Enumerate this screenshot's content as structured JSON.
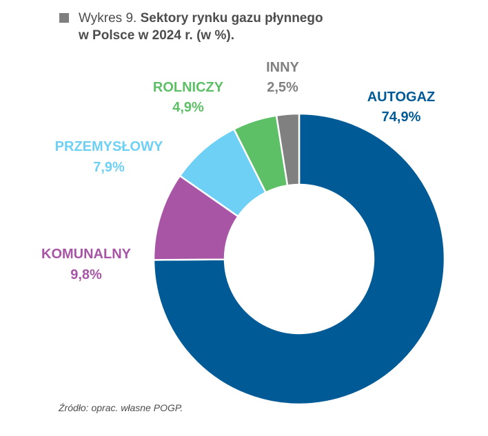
{
  "title": {
    "prefix": "Wykres 9.",
    "bold_line1": "Sektory rynku gazu płynnego",
    "bold_line2": "w Polsce w 2024 r. (w %)."
  },
  "chart_data": {
    "type": "pie",
    "donut": true,
    "unit": "%",
    "slices": [
      {
        "name": "AUTOGAZ",
        "value": 74.9,
        "label": "74,9%",
        "color": "#005a96"
      },
      {
        "name": "KOMUNALNY",
        "value": 9.8,
        "label": "9,8%",
        "color": "#a855a5"
      },
      {
        "name": "PRZEMYSŁOWY",
        "value": 7.9,
        "label": "7,9%",
        "color": "#6fd0f6"
      },
      {
        "name": "ROLNICZY",
        "value": 4.9,
        "label": "4,9%",
        "color": "#5dbf66"
      },
      {
        "name": "INNY",
        "value": 2.5,
        "label": "2,5%",
        "color": "#808080"
      }
    ]
  },
  "source": "Źródło: oprac. własne POGP."
}
